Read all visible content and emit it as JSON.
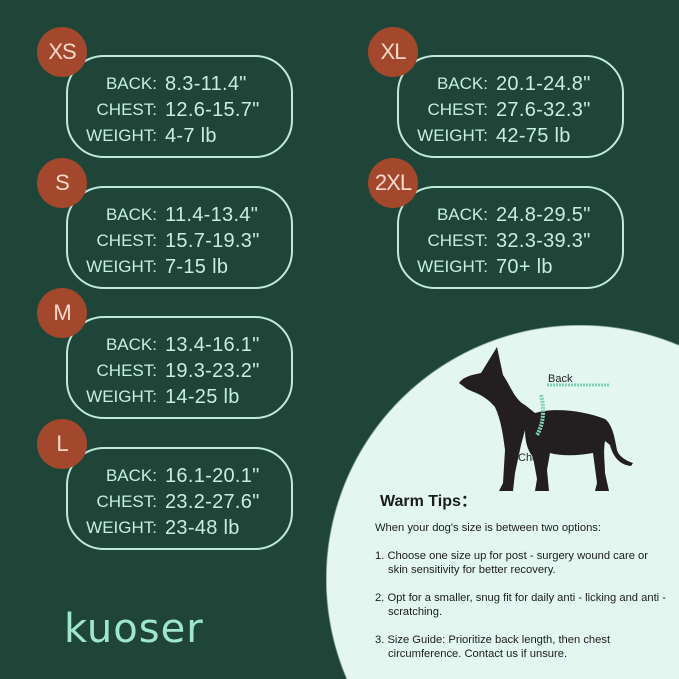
{
  "labels": {
    "back": "BACK:",
    "chest": "CHEST:",
    "weight": "WEIGHT:"
  },
  "sizes": [
    {
      "size": "XS",
      "back": "8.3-11.4\"",
      "chest": "12.6-15.7\"",
      "weight": "4-7 lb"
    },
    {
      "size": "S",
      "back": "11.4-13.4\"",
      "chest": "15.7-19.3\"",
      "weight": "7-15 lb"
    },
    {
      "size": "M",
      "back": "13.4-16.1\"",
      "chest": "19.3-23.2\"",
      "weight": "14-25 lb"
    },
    {
      "size": "L",
      "back": "16.1-20.1\"",
      "chest": "23.2-27.6\"",
      "weight": "23-48 lb"
    },
    {
      "size": "XL",
      "back": "20.1-24.8\"",
      "chest": "27.6-32.3\"",
      "weight": "42-75 lb"
    },
    {
      "size": "2XL",
      "back": "24.8-29.5\"",
      "chest": "32.3-39.3\"",
      "weight": "70+ lb"
    }
  ],
  "diagram": {
    "back_label": "Back",
    "chest_label": "Chest"
  },
  "tips": {
    "title": "Warm Tips：",
    "intro": "When your dog's size is between two options:",
    "items": [
      "1. Choose one size up for post - surgery wound care or skin sensitivity for better recovery.",
      "2. Opt for a smaller, snug fit for daily anti - licking and anti - scratching.",
      "3. Size Guide: Prioritize back length, then chest circumference. Contact us if unsure."
    ]
  },
  "brand": "kuoser",
  "colors": {
    "background": "#1f4539",
    "badge": "#a4482d",
    "text": "#c6efdf",
    "tips_bg": "#e3f6ef"
  }
}
